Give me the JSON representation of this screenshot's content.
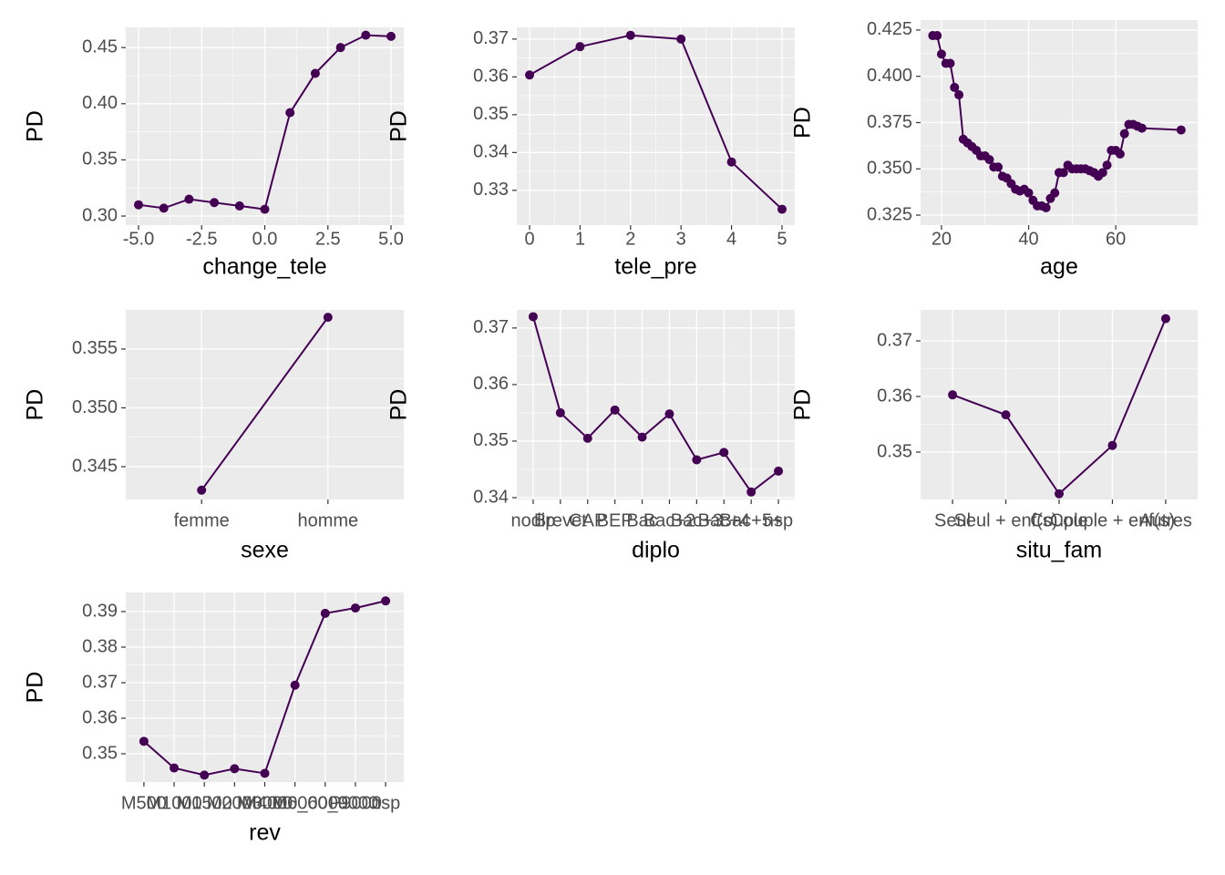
{
  "chart_data": [
    {
      "type": "line",
      "x_label": "change_tele",
      "y_label": "PD",
      "color": "#440154",
      "x": [
        -5,
        -4,
        -3,
        -2,
        -1,
        0,
        1,
        2,
        3,
        4,
        5
      ],
      "values": [
        0.31,
        0.307,
        0.315,
        0.312,
        0.309,
        0.306,
        0.392,
        0.427,
        0.45,
        0.461,
        0.46
      ],
      "xlim": [
        -5.505,
        5.505
      ],
      "ylim": [
        0.2919,
        0.468
      ],
      "xticks": [
        {
          "value": -5,
          "label": "-5.0"
        },
        -2.5,
        {
          "value": 0,
          "label": "0.0"
        },
        2.5,
        {
          "value": 5,
          "label": "5.0"
        }
      ],
      "yticks": [
        {
          "value": 0.3,
          "label": "0.30"
        },
        0.35,
        {
          "value": 0.4,
          "label": "0.40"
        },
        0.45
      ]
    },
    {
      "type": "line",
      "x_label": "tele_pre",
      "y_label": "PD",
      "color": "#440154",
      "x": [
        0,
        1,
        2,
        3,
        4,
        5
      ],
      "values": [
        0.3605,
        0.368,
        0.371,
        0.37,
        0.3375,
        0.325
      ],
      "xlim": [
        -0.253,
        5.253
      ],
      "ylim": [
        0.3208,
        0.3731
      ],
      "xticks": [
        0,
        1,
        2,
        3,
        4,
        5
      ],
      "yticks": [
        0.33,
        0.34,
        0.35,
        0.36,
        0.37
      ]
    },
    {
      "type": "line",
      "x_label": "age",
      "y_label": "PD",
      "color": "#440154",
      "x": [
        18,
        19,
        20,
        21,
        22,
        23,
        24,
        25,
        26,
        27,
        28,
        29,
        30,
        31,
        32,
        33,
        34,
        35,
        36,
        37,
        38,
        39,
        40,
        41,
        42,
        43,
        44,
        45,
        46,
        47,
        48,
        49,
        50,
        51,
        52,
        53,
        54,
        55,
        56,
        57,
        58,
        59,
        60,
        61,
        62,
        63,
        64,
        65,
        66,
        75
      ],
      "values": [
        0.422,
        0.422,
        0.412,
        0.407,
        0.407,
        0.394,
        0.39,
        0.366,
        0.364,
        0.362,
        0.36,
        0.357,
        0.357,
        0.355,
        0.351,
        0.351,
        0.346,
        0.345,
        0.342,
        0.339,
        0.338,
        0.339,
        0.337,
        0.333,
        0.33,
        0.33,
        0.329,
        0.334,
        0.337,
        0.348,
        0.348,
        0.352,
        0.35,
        0.35,
        0.35,
        0.35,
        0.349,
        0.348,
        0.346,
        0.348,
        0.352,
        0.36,
        0.36,
        0.358,
        0.369,
        0.374,
        0.374,
        0.373,
        0.372,
        0.371
      ],
      "xlim": [
        15.2,
        78.8
      ],
      "ylim": [
        0.3196,
        0.4304
      ],
      "xticks": [
        20,
        40,
        60
      ],
      "yticks": [
        0.325,
        {
          "value": 0.35,
          "label": "0.350"
        },
        0.375,
        {
          "value": 0.4,
          "label": "0.400"
        },
        0.425
      ]
    },
    {
      "type": "line",
      "x_label": "sexe",
      "y_label": "PD",
      "color": "#440154",
      "categories": [
        "femme",
        "homme"
      ],
      "values": [
        0.343,
        0.3577
      ],
      "ylim": [
        0.34221,
        0.35833
      ],
      "yticks": [
        0.345,
        {
          "value": 0.35,
          "label": "0.350"
        },
        0.355
      ]
    },
    {
      "type": "line",
      "x_label": "diplo",
      "y_label": "PD",
      "color": "#440154",
      "categories": [
        "nodip",
        "Brevet",
        "CAP",
        "BEP",
        "Bac",
        "Bac+2",
        "Bac+3",
        "Bac+4",
        "Bac+5+",
        "nsp"
      ],
      "values": [
        0.372,
        0.355,
        0.3505,
        0.3555,
        0.3507,
        0.3548,
        0.3467,
        0.348,
        0.341,
        0.3447
      ],
      "ylim": [
        0.33968,
        0.3732
      ],
      "yticks": [
        0.34,
        0.35,
        0.36,
        0.37
      ]
    },
    {
      "type": "line",
      "x_label": "situ_fam",
      "y_label": "PD",
      "color": "#440154",
      "categories": [
        "Seul",
        "Seul + enf(s)",
        "Couple",
        "Couple + enf(s)",
        "Autres"
      ],
      "values": [
        0.3603,
        0.3567,
        0.3425,
        0.3512,
        0.374
      ],
      "ylim": [
        0.34148,
        0.37557
      ],
      "yticks": [
        0.35,
        0.36,
        0.37
      ]
    },
    {
      "type": "line",
      "x_label": "rev",
      "y_label": "PD",
      "color": "#440154",
      "categories": [
        "M500",
        "M1000",
        "M1500",
        "M2000",
        "M3000",
        "M4000_6000",
        "M6000_9000",
        "P9000",
        "nsp"
      ],
      "values": [
        0.3535,
        0.346,
        0.344,
        0.3458,
        0.3445,
        0.3693,
        0.3895,
        0.391,
        0.393
      ],
      "ylim": [
        0.34205,
        0.39538
      ],
      "yticks": [
        0.35,
        0.36,
        0.37,
        0.38,
        0.39
      ]
    }
  ]
}
